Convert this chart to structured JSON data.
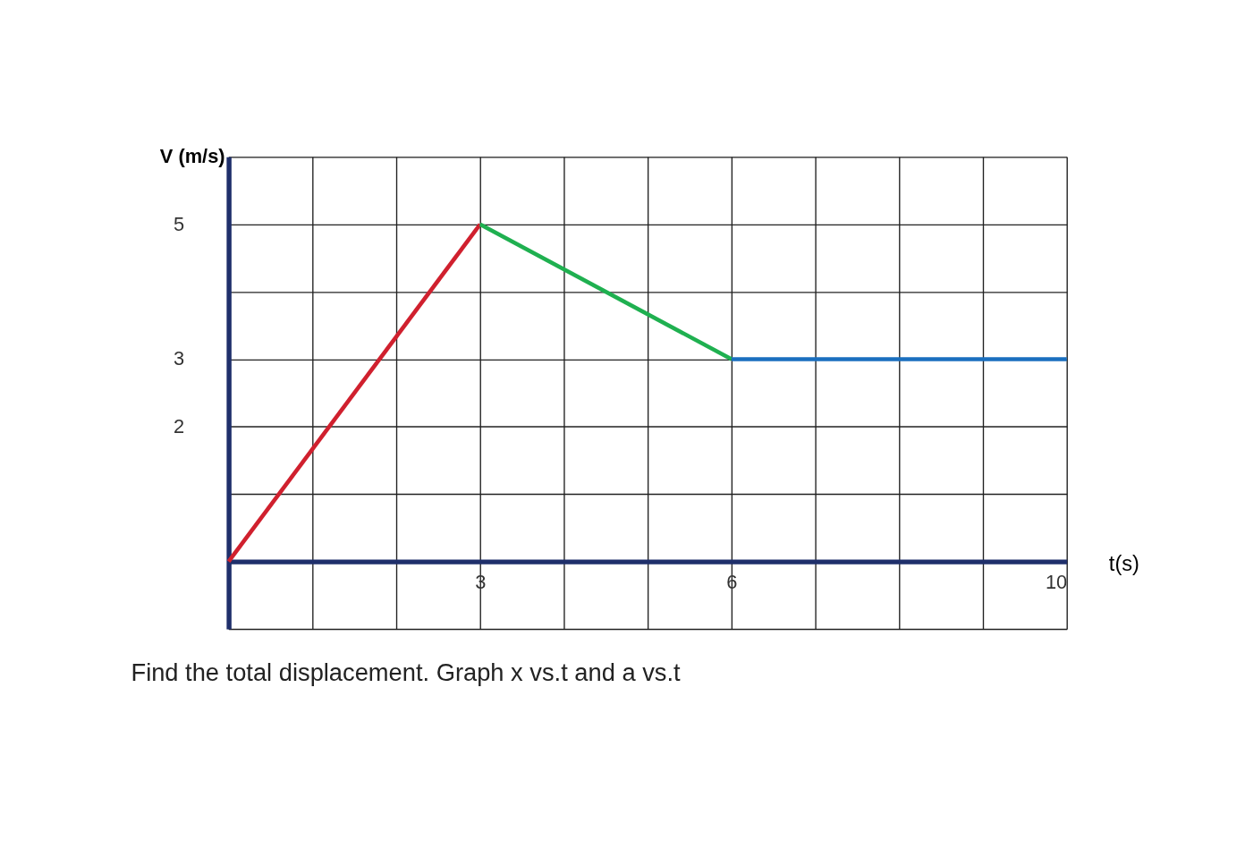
{
  "chart_data": {
    "type": "line",
    "xlabel": "t(s)",
    "ylabel": "V (m/s)",
    "xlim": [
      0,
      10
    ],
    "ylim": [
      -1,
      6
    ],
    "xticks": [
      {
        "value": 0,
        "label": null
      },
      {
        "value": 1,
        "label": null
      },
      {
        "value": 2,
        "label": null
      },
      3,
      {
        "value": 4,
        "label": null
      },
      {
        "value": 5,
        "label": null
      },
      6,
      {
        "value": 7,
        "label": null
      },
      {
        "value": 8,
        "label": null
      },
      {
        "value": 9,
        "label": null
      },
      10
    ],
    "yticks": [
      {
        "value": -1,
        "label": null
      },
      {
        "value": 0,
        "label": null
      },
      {
        "value": 1,
        "label": null
      },
      2,
      3,
      {
        "value": 4,
        "label": null
      },
      5,
      {
        "value": 6,
        "label": null
      }
    ],
    "grid": true,
    "marker": "none",
    "line_style": "solid",
    "series": [
      {
        "color": "#d0202e",
        "x": [
          0,
          3
        ],
        "values": [
          0,
          5
        ]
      },
      {
        "color": "#1fb050",
        "x": [
          3,
          6
        ],
        "values": [
          5,
          3
        ]
      },
      {
        "color": "#1a6fbf",
        "x": [
          6,
          10
        ],
        "values": [
          3,
          3
        ]
      }
    ],
    "annotations": [
      "Find the total displacement. Graph x vs.t and a vs.t"
    ]
  }
}
